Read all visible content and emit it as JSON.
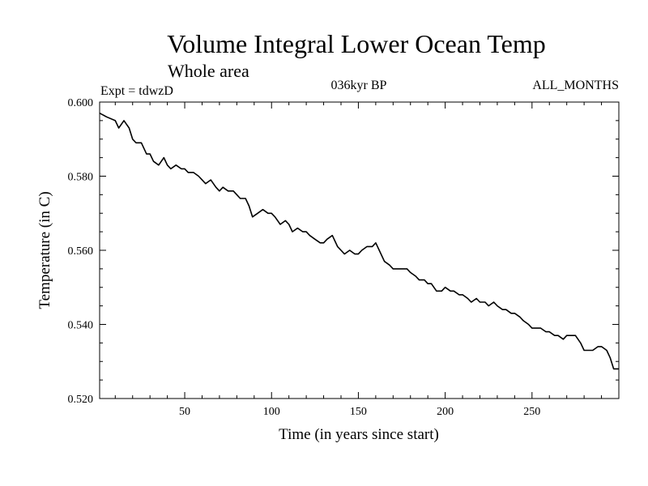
{
  "chart_data": {
    "type": "line",
    "title": "Volume Integral Lower Ocean Temp",
    "subtitle": "Whole area",
    "annotations": {
      "left": "Expt = tdwzD",
      "center": "036kyr BP",
      "right": "ALL_MONTHS"
    },
    "xlabel": "Time (in years since start)",
    "ylabel": "Temperature (in C)",
    "xlim": [
      1,
      300
    ],
    "ylim": [
      0.52,
      0.6
    ],
    "x_ticks": [
      50,
      100,
      150,
      200,
      250
    ],
    "x_tick_labels": [
      "50",
      "100",
      "150",
      "200",
      "250"
    ],
    "y_ticks": [
      0.52,
      0.54,
      0.56,
      0.58,
      0.6
    ],
    "y_tick_labels": [
      "0.520",
      "0.540",
      "0.560",
      "0.580",
      "0.600"
    ],
    "grid": false,
    "series": [
      {
        "color": "#000000",
        "x": [
          1,
          5,
          10,
          12,
          15,
          18,
          20,
          22,
          25,
          28,
          30,
          32,
          35,
          38,
          40,
          42,
          45,
          48,
          50,
          52,
          55,
          58,
          60,
          62,
          65,
          68,
          70,
          72,
          75,
          78,
          80,
          82,
          85,
          87,
          89,
          92,
          95,
          98,
          100,
          102,
          105,
          108,
          110,
          112,
          115,
          118,
          120,
          122,
          125,
          128,
          130,
          132,
          135,
          138,
          140,
          142,
          145,
          148,
          150,
          152,
          155,
          158,
          160,
          162,
          165,
          168,
          170,
          172,
          175,
          178,
          180,
          183,
          185,
          188,
          190,
          192,
          195,
          198,
          200,
          203,
          205,
          208,
          210,
          213,
          215,
          218,
          220,
          223,
          225,
          228,
          230,
          233,
          235,
          238,
          240,
          243,
          245,
          248,
          250,
          253,
          255,
          258,
          260,
          263,
          265,
          268,
          270,
          273,
          275,
          278,
          280,
          283,
          285,
          288,
          290,
          293,
          295,
          297,
          300
        ],
        "y": [
          0.597,
          0.596,
          0.595,
          0.593,
          0.595,
          0.593,
          0.59,
          0.589,
          0.589,
          0.586,
          0.586,
          0.584,
          0.583,
          0.585,
          0.583,
          0.582,
          0.583,
          0.582,
          0.582,
          0.581,
          0.581,
          0.58,
          0.579,
          0.578,
          0.579,
          0.577,
          0.576,
          0.577,
          0.576,
          0.576,
          0.575,
          0.574,
          0.574,
          0.572,
          0.569,
          0.57,
          0.571,
          0.57,
          0.57,
          0.569,
          0.567,
          0.568,
          0.567,
          0.565,
          0.566,
          0.565,
          0.565,
          0.564,
          0.563,
          0.562,
          0.562,
          0.563,
          0.564,
          0.561,
          0.56,
          0.559,
          0.56,
          0.559,
          0.559,
          0.56,
          0.561,
          0.561,
          0.562,
          0.56,
          0.557,
          0.556,
          0.555,
          0.555,
          0.555,
          0.555,
          0.554,
          0.553,
          0.552,
          0.552,
          0.551,
          0.551,
          0.549,
          0.549,
          0.55,
          0.549,
          0.549,
          0.548,
          0.548,
          0.547,
          0.546,
          0.547,
          0.546,
          0.546,
          0.545,
          0.546,
          0.545,
          0.544,
          0.544,
          0.543,
          0.543,
          0.542,
          0.541,
          0.54,
          0.539,
          0.539,
          0.539,
          0.538,
          0.538,
          0.537,
          0.537,
          0.536,
          0.537,
          0.537,
          0.537,
          0.535,
          0.533,
          0.533,
          0.533,
          0.534,
          0.534,
          0.533,
          0.531,
          0.528,
          0.528
        ]
      }
    ]
  }
}
